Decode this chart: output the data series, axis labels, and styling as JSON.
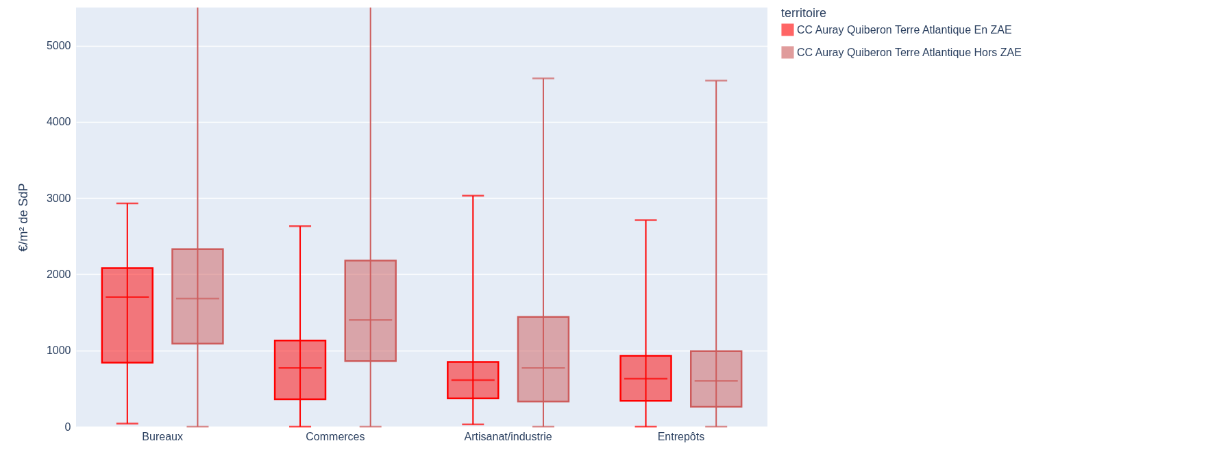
{
  "chart_data": {
    "type": "box",
    "ylabel": "€/m² de SdP",
    "legend_title": "territoire",
    "categories": [
      "Bureaux",
      "Commerces",
      "Artisanat/industrie",
      "Entrepôts"
    ],
    "series": [
      {
        "name": "CC Auray Quiberon Terre Atlantique En ZAE",
        "color": "#ff0000",
        "boxes": [
          {
            "low": 40,
            "q1": 840,
            "median": 1700,
            "q3": 2080,
            "high": 2930
          },
          {
            "low": 0,
            "q1": 360,
            "median": 770,
            "q3": 1130,
            "high": 2630
          },
          {
            "low": 30,
            "q1": 370,
            "median": 610,
            "q3": 850,
            "high": 3030
          },
          {
            "low": 0,
            "q1": 340,
            "median": 630,
            "q3": 930,
            "high": 2710
          }
        ]
      },
      {
        "name": "CC Auray Quiberon Terre Atlantique Hors ZAE",
        "color": "#cd5c5c",
        "boxes": [
          {
            "low": 0,
            "q1": 1090,
            "median": 1680,
            "q3": 2330,
            "high": 5500
          },
          {
            "low": 0,
            "q1": 860,
            "median": 1400,
            "q3": 2180,
            "high": 5500
          },
          {
            "low": 0,
            "q1": 330,
            "median": 770,
            "q3": 1440,
            "high": 4570
          },
          {
            "low": 0,
            "q1": 260,
            "median": 600,
            "q3": 990,
            "high": 4540
          }
        ]
      }
    ],
    "ylim": [
      0,
      5500
    ],
    "yticks": [
      0,
      1000,
      2000,
      3000,
      4000,
      5000
    ],
    "grid": "y",
    "legend": "top right"
  }
}
